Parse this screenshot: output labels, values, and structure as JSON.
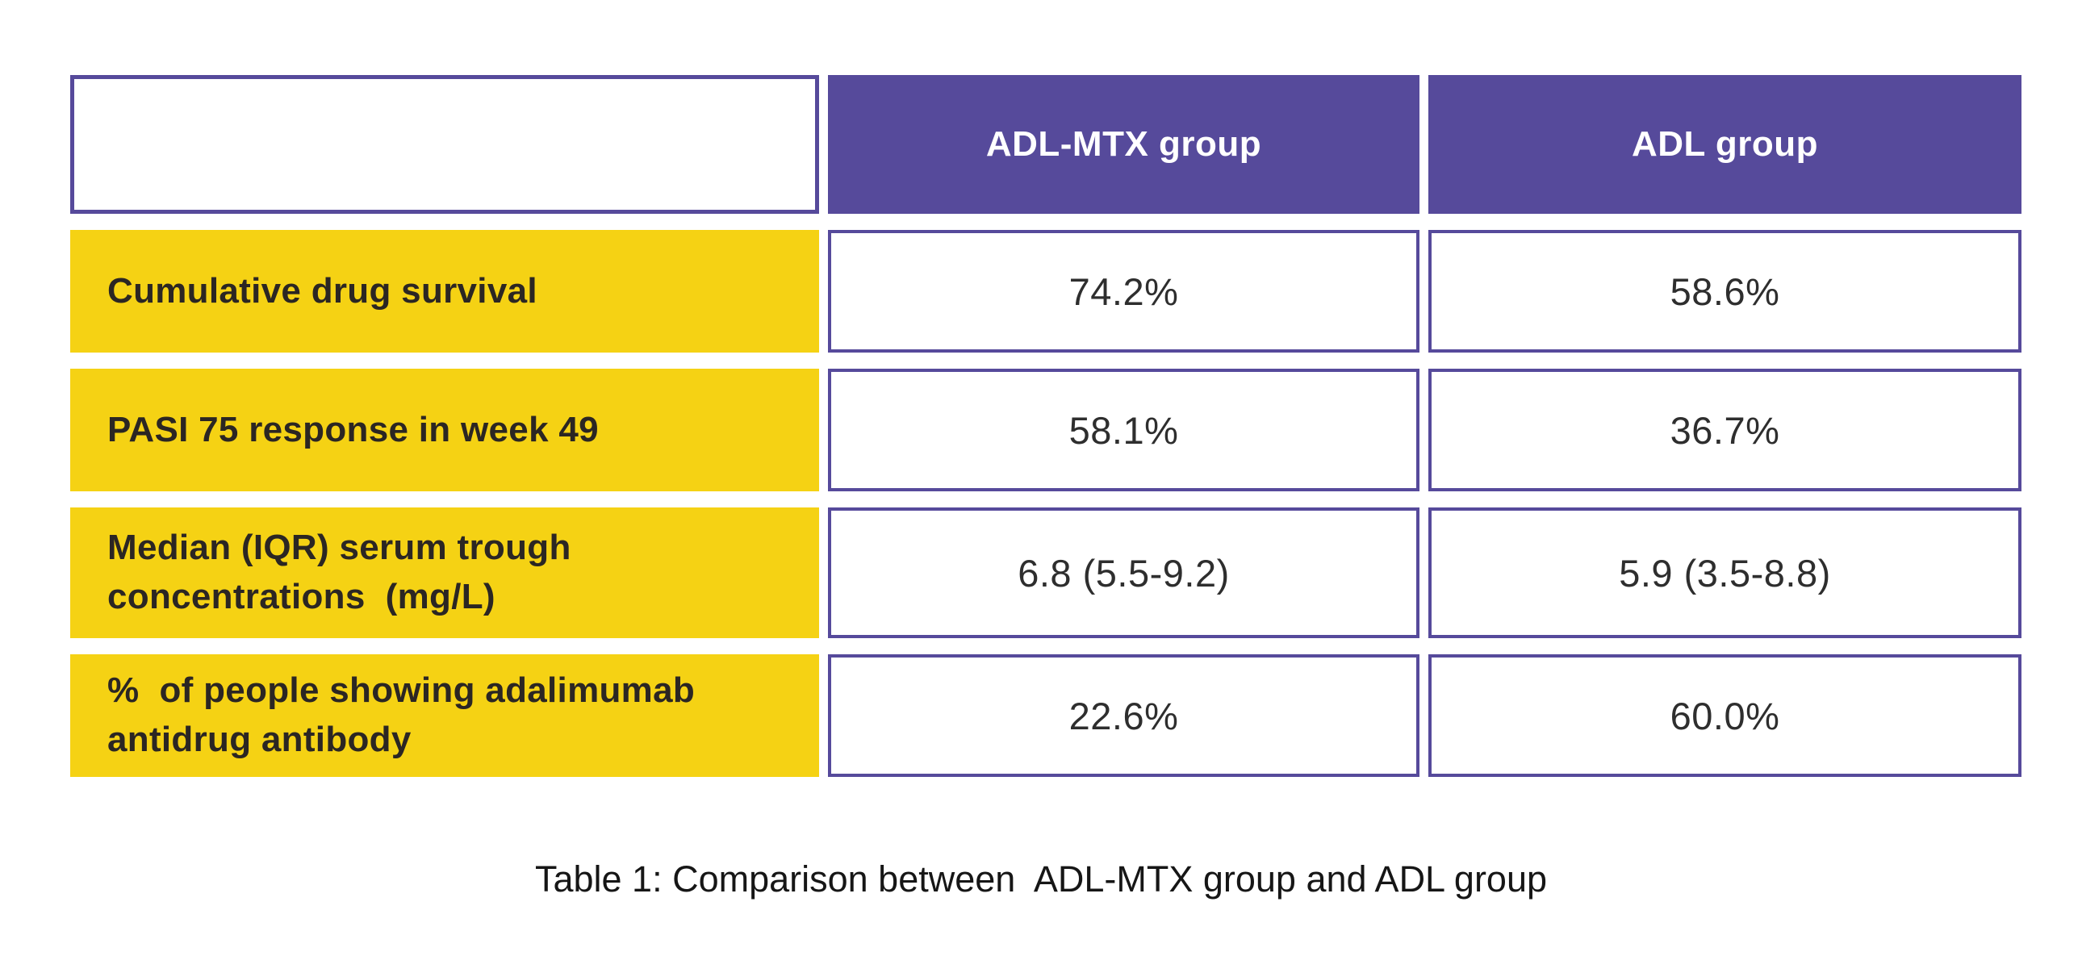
{
  "chart_data": {
    "type": "table",
    "title": "Table 1: Comparison between  ADL-MTX group and ADL group",
    "columns": [
      "",
      "ADL-MTX group",
      "ADL group"
    ],
    "rows": [
      [
        "Cumulative drug survival",
        "74.2%",
        "58.6%"
      ],
      [
        "PASI 75 response in week 49",
        "58.1%",
        "36.7%"
      ],
      [
        "Median (IQR) serum trough concentrations (mg/L)",
        "6.8 (5.5-9.2)",
        "5.9 (3.5-8.8)"
      ],
      [
        "% of people showing adalimumab antidrug antibody",
        "22.6%",
        "60.0%"
      ]
    ],
    "layout_hints": {
      "header_fill": "purple",
      "row_label_fill": "yellow",
      "value_cells": "white with purple border",
      "caption_position": "bottom-center"
    }
  },
  "table": {
    "columns": [
      {
        "label": ""
      },
      {
        "label": "ADL-MTX group"
      },
      {
        "label": "ADL group"
      }
    ],
    "rows": [
      {
        "label": "Cumulative drug survival",
        "values": [
          "74.2%",
          "58.6%"
        ]
      },
      {
        "label": "PASI 75 response in week 49",
        "values": [
          "58.1%",
          "36.7%"
        ]
      },
      {
        "label": "Median (IQR) serum trough\nconcentrations  (mg/L)",
        "values": [
          "6.8 (5.5-9.2)",
          "5.9 (3.5-8.8)"
        ]
      },
      {
        "label": "%  of people showing adalimumab\nantidrug antibody",
        "values": [
          "22.6%",
          "60.0%"
        ]
      }
    ]
  },
  "caption": "Table 1: Comparison between  ADL-MTX group and ADL group",
  "colors": {
    "purple": "#564a9b",
    "yellow": "#f5d214",
    "header_text": "#ffffff",
    "label_text": "#2b2623",
    "value_text": "#2e2e2e",
    "caption_text": "#161616"
  }
}
